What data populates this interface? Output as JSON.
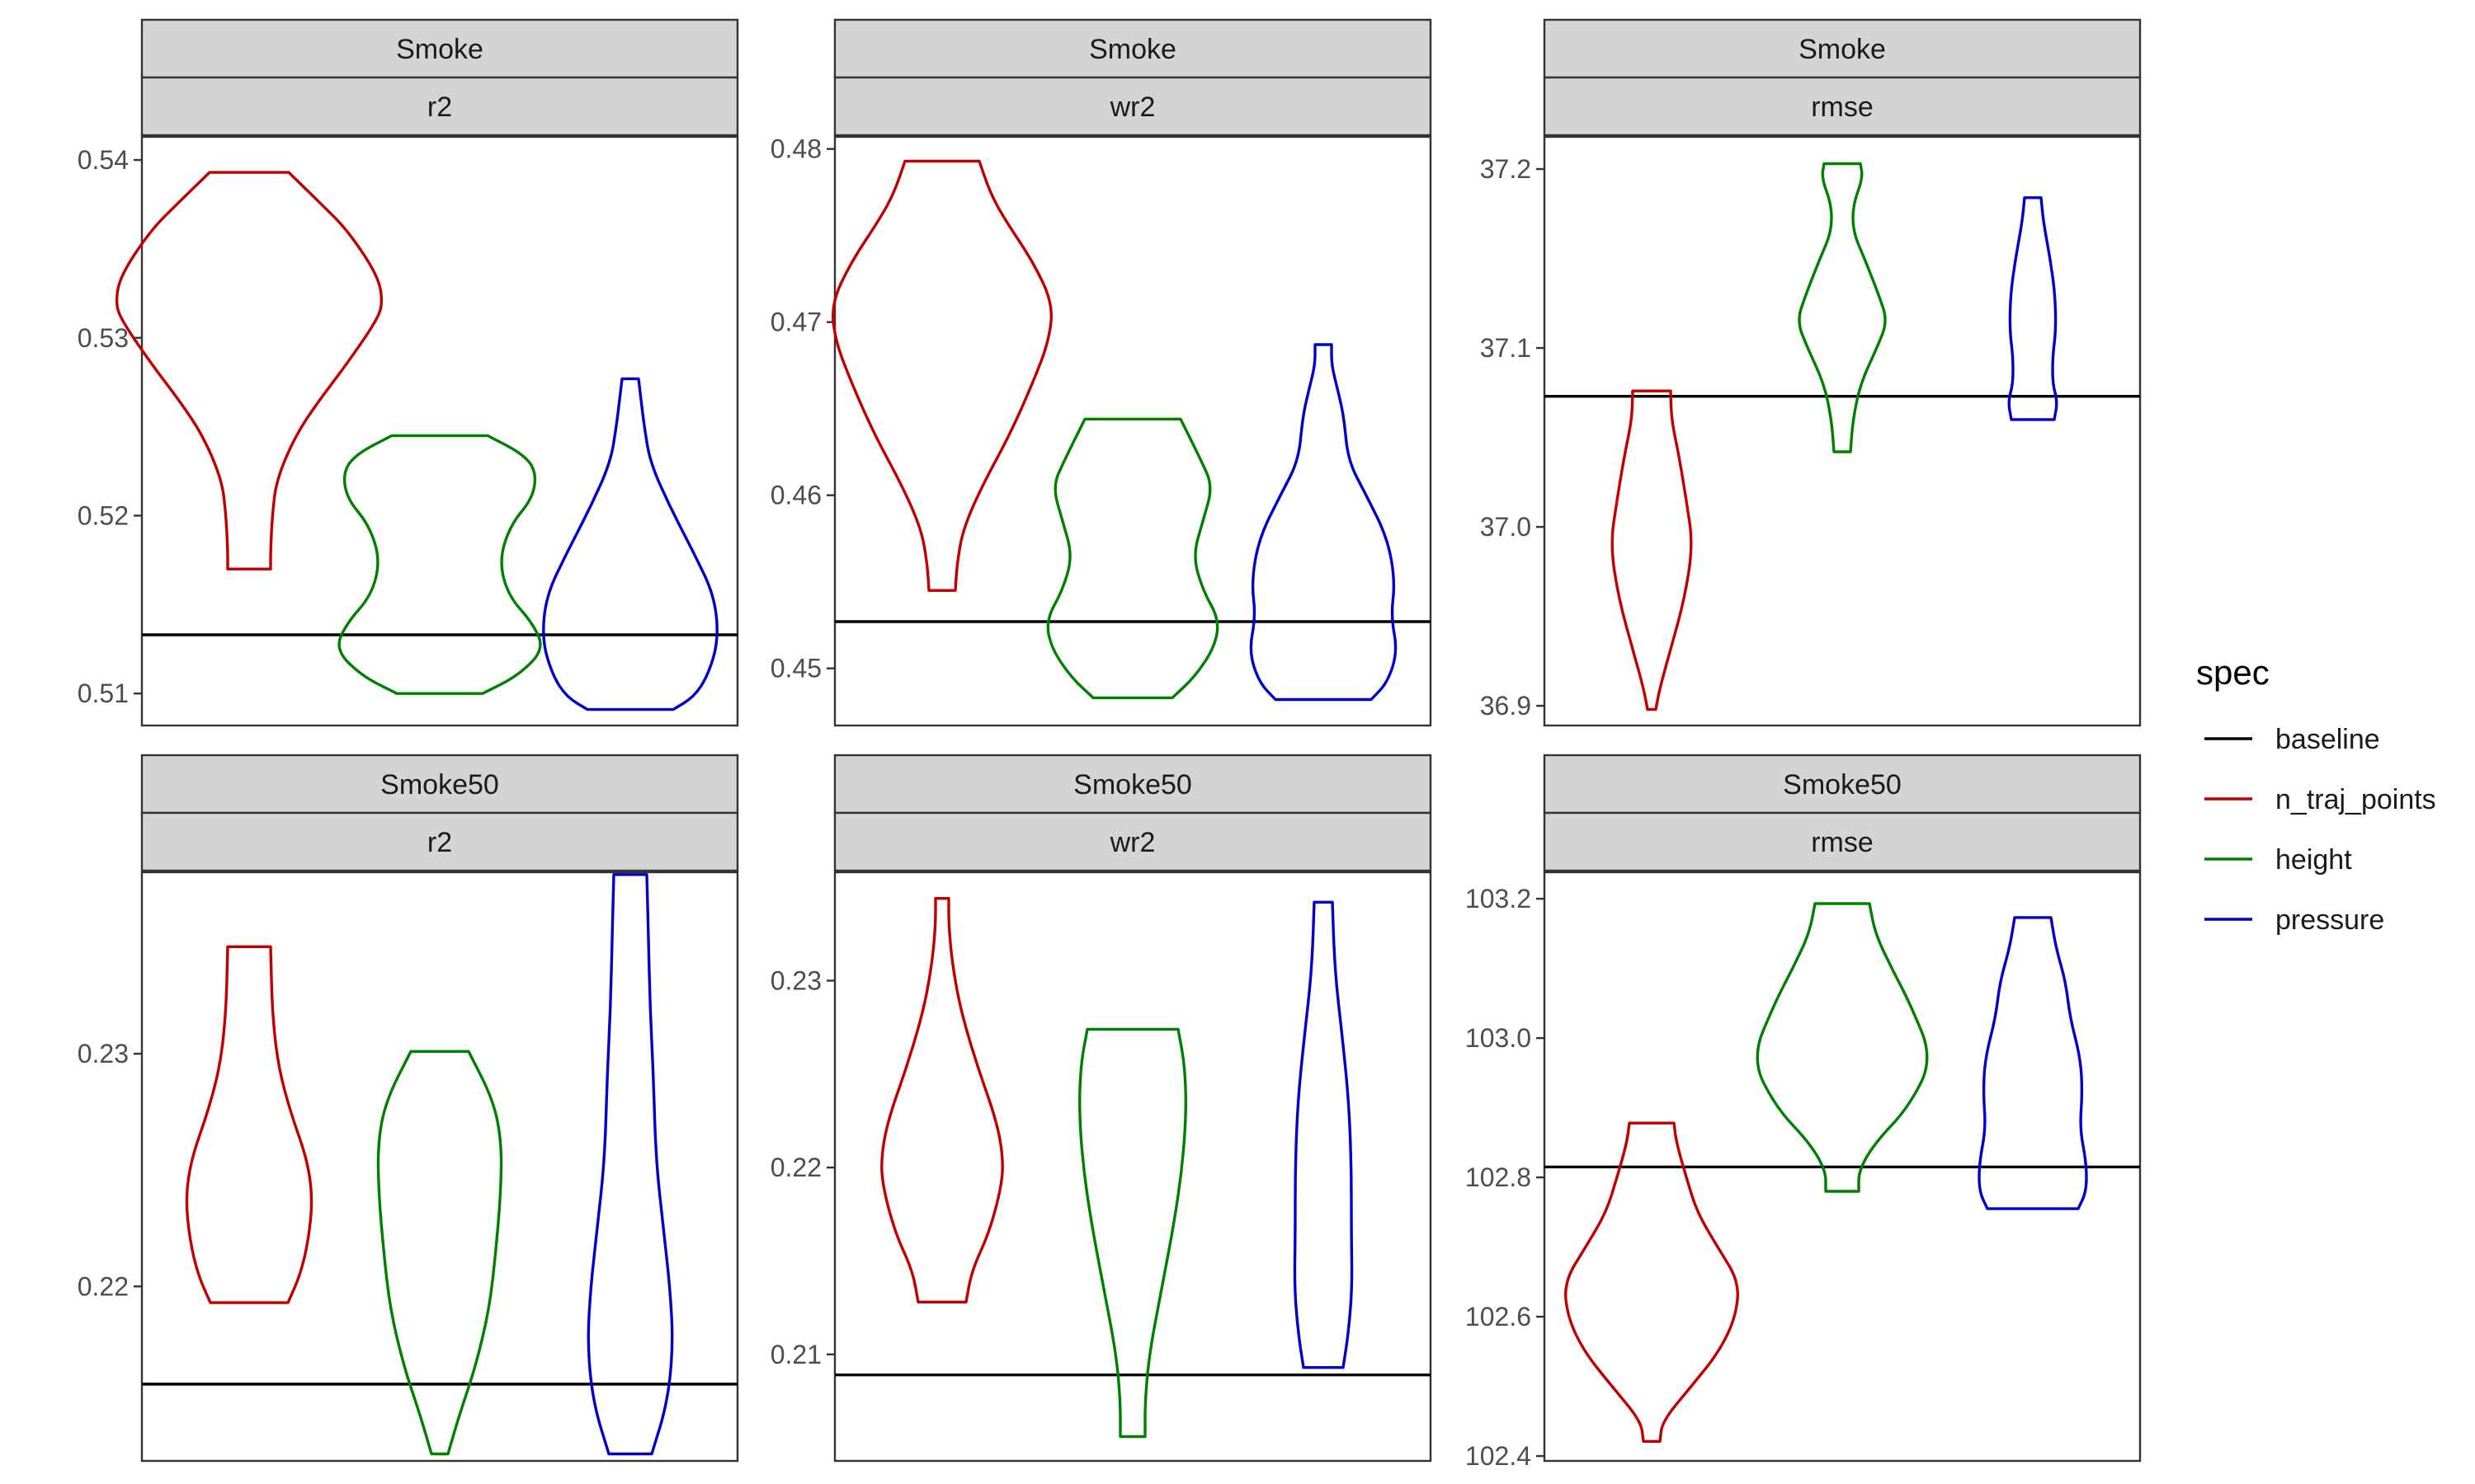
{
  "colors": {
    "baseline": "#000000",
    "n_traj_points": "#c00000",
    "height": "#008000",
    "pressure": "#0000c8",
    "strip": "#d4d4d4"
  },
  "legend": {
    "title": "spec",
    "position": "right",
    "items": [
      {
        "key": "baseline",
        "label": "baseline"
      },
      {
        "key": "n_traj_points",
        "label": "n_traj_points"
      },
      {
        "key": "height",
        "label": "height"
      },
      {
        "key": "pressure",
        "label": "pressure"
      }
    ]
  },
  "chart_data": [
    {
      "type": "violin",
      "dataset": "Smoke",
      "metric": "r2",
      "ylim": [
        0.5082,
        0.5413
      ],
      "yticks": [
        0.51,
        0.52,
        0.53,
        0.54
      ],
      "tick_labels": [
        "0.51",
        "0.52",
        "0.53",
        "0.54"
      ],
      "baseline": 0.5133,
      "violins": [
        {
          "spec": "n_traj_points",
          "ymin": 0.517,
          "ymax": 0.5393,
          "profile": [
            [
              0.517,
              0.026
            ],
            [
              0.518,
              0.026
            ],
            [
              0.52,
              0.028
            ],
            [
              0.522,
              0.033
            ],
            [
              0.5245,
              0.056
            ],
            [
              0.5265,
              0.085
            ],
            [
              0.5285,
              0.118
            ],
            [
              0.531,
              0.155
            ],
            [
              0.532,
              0.162
            ],
            [
              0.5335,
              0.156
            ],
            [
              0.536,
              0.12
            ],
            [
              0.5375,
              0.088
            ],
            [
              0.5393,
              0.048
            ]
          ]
        },
        {
          "spec": "height",
          "ymin": 0.51,
          "ymax": 0.5245,
          "profile": [
            [
              0.51,
              0.052
            ],
            [
              0.511,
              0.095
            ],
            [
              0.5125,
              0.127
            ],
            [
              0.514,
              0.112
            ],
            [
              0.5155,
              0.083
            ],
            [
              0.5175,
              0.072
            ],
            [
              0.5195,
              0.086
            ],
            [
              0.521,
              0.113
            ],
            [
              0.5225,
              0.117
            ],
            [
              0.5235,
              0.1
            ],
            [
              0.5245,
              0.058
            ]
          ]
        },
        {
          "spec": "pressure",
          "ymin": 0.5091,
          "ymax": 0.5277,
          "profile": [
            [
              0.5091,
              0.052
            ],
            [
              0.5098,
              0.077
            ],
            [
              0.511,
              0.094
            ],
            [
              0.513,
              0.107
            ],
            [
              0.5155,
              0.102
            ],
            [
              0.518,
              0.076
            ],
            [
              0.5205,
              0.048
            ],
            [
              0.523,
              0.024
            ],
            [
              0.525,
              0.017
            ],
            [
              0.5265,
              0.013
            ],
            [
              0.5277,
              0.01
            ]
          ]
        }
      ]
    },
    {
      "type": "violin",
      "dataset": "Smoke",
      "metric": "wr2",
      "ylim": [
        0.4467,
        0.4807
      ],
      "yticks": [
        0.45,
        0.46,
        0.47,
        0.48
      ],
      "tick_labels": [
        "0.45",
        "0.46",
        "0.47",
        "0.48"
      ],
      "baseline": 0.4527,
      "violins": [
        {
          "spec": "n_traj_points",
          "ymin": 0.4545,
          "ymax": 0.4793,
          "profile": [
            [
              0.4545,
              0.016
            ],
            [
              0.456,
              0.018
            ],
            [
              0.458,
              0.025
            ],
            [
              0.4605,
              0.048
            ],
            [
              0.4635,
              0.082
            ],
            [
              0.4665,
              0.11
            ],
            [
              0.469,
              0.13
            ],
            [
              0.4711,
              0.134
            ],
            [
              0.4735,
              0.11
            ],
            [
              0.476,
              0.075
            ],
            [
              0.4775,
              0.058
            ],
            [
              0.4793,
              0.045
            ]
          ]
        },
        {
          "spec": "height",
          "ymin": 0.4483,
          "ymax": 0.4644,
          "profile": [
            [
              0.4483,
              0.048
            ],
            [
              0.4495,
              0.075
            ],
            [
              0.4512,
              0.099
            ],
            [
              0.4528,
              0.105
            ],
            [
              0.4545,
              0.085
            ],
            [
              0.4565,
              0.073
            ],
            [
              0.4585,
              0.085
            ],
            [
              0.4605,
              0.097
            ],
            [
              0.462,
              0.083
            ],
            [
              0.4644,
              0.058
            ]
          ]
        },
        {
          "spec": "pressure",
          "ymin": 0.4482,
          "ymax": 0.4687,
          "profile": [
            [
              0.4482,
              0.058
            ],
            [
              0.4492,
              0.078
            ],
            [
              0.451,
              0.09
            ],
            [
              0.453,
              0.082
            ],
            [
              0.455,
              0.087
            ],
            [
              0.4575,
              0.078
            ],
            [
              0.46,
              0.052
            ],
            [
              0.462,
              0.03
            ],
            [
              0.4645,
              0.025
            ],
            [
              0.466,
              0.018
            ],
            [
              0.4675,
              0.01
            ],
            [
              0.4687,
              0.01
            ]
          ]
        }
      ]
    },
    {
      "type": "violin",
      "dataset": "Smoke",
      "metric": "rmse",
      "ylim": [
        36.889,
        37.218
      ],
      "yticks": [
        36.9,
        37.0,
        37.1,
        37.2
      ],
      "tick_labels": [
        "36.9",
        "37.0",
        "37.1",
        "37.2"
      ],
      "baseline": 37.073,
      "violins": [
        {
          "spec": "n_traj_points",
          "ymin": 36.898,
          "ymax": 37.076,
          "profile": [
            [
              36.898,
              0.005
            ],
            [
              36.91,
              0.01
            ],
            [
              36.93,
              0.022
            ],
            [
              36.96,
              0.04
            ],
            [
              36.99,
              0.05
            ],
            [
              37.015,
              0.042
            ],
            [
              37.04,
              0.033
            ],
            [
              37.06,
              0.024
            ],
            [
              37.076,
              0.023
            ]
          ]
        },
        {
          "spec": "height",
          "ymin": 37.042,
          "ymax": 37.203,
          "profile": [
            [
              37.042,
              0.01
            ],
            [
              37.06,
              0.013
            ],
            [
              37.08,
              0.022
            ],
            [
              37.1,
              0.042
            ],
            [
              37.115,
              0.055
            ],
            [
              37.13,
              0.044
            ],
            [
              37.15,
              0.027
            ],
            [
              37.165,
              0.013
            ],
            [
              37.18,
              0.013
            ],
            [
              37.195,
              0.025
            ],
            [
              37.203,
              0.022
            ]
          ]
        },
        {
          "spec": "pressure",
          "ymin": 37.06,
          "ymax": 37.184,
          "profile": [
            [
              37.06,
              0.026
            ],
            [
              37.07,
              0.03
            ],
            [
              37.08,
              0.024
            ],
            [
              37.095,
              0.024
            ],
            [
              37.11,
              0.028
            ],
            [
              37.13,
              0.027
            ],
            [
              37.15,
              0.021
            ],
            [
              37.17,
              0.013
            ],
            [
              37.184,
              0.01
            ]
          ]
        }
      ]
    },
    {
      "type": "violin",
      "dataset": "Smoke50",
      "metric": "r2",
      "ylim": [
        0.2125,
        0.2378
      ],
      "yticks": [
        0.22,
        0.23
      ],
      "tick_labels": [
        "0.22",
        "0.23"
      ],
      "baseline": 0.2158,
      "violins": [
        {
          "spec": "n_traj_points",
          "ymin": 0.2193,
          "ymax": 0.2346,
          "profile": [
            [
              0.2193,
              0.047
            ],
            [
              0.2205,
              0.062
            ],
            [
              0.222,
              0.072
            ],
            [
              0.2238,
              0.077
            ],
            [
              0.2255,
              0.07
            ],
            [
              0.2275,
              0.05
            ],
            [
              0.2295,
              0.035
            ],
            [
              0.2318,
              0.028
            ],
            [
              0.2346,
              0.026
            ]
          ]
        },
        {
          "spec": "height",
          "ymin": 0.2128,
          "ymax": 0.2301,
          "profile": [
            [
              0.2128,
              0.01
            ],
            [
              0.2145,
              0.024
            ],
            [
              0.2165,
              0.043
            ],
            [
              0.219,
              0.06
            ],
            [
              0.2215,
              0.068
            ],
            [
              0.224,
              0.074
            ],
            [
              0.2262,
              0.075
            ],
            [
              0.228,
              0.065
            ],
            [
              0.2301,
              0.035
            ]
          ]
        },
        {
          "spec": "pressure",
          "ymin": 0.2128,
          "ymax": 0.2377,
          "profile": [
            [
              0.2128,
              0.026
            ],
            [
              0.215,
              0.045
            ],
            [
              0.2175,
              0.052
            ],
            [
              0.22,
              0.048
            ],
            [
              0.2225,
              0.04
            ],
            [
              0.2255,
              0.031
            ],
            [
              0.229,
              0.028
            ],
            [
              0.232,
              0.024
            ],
            [
              0.235,
              0.022
            ],
            [
              0.2377,
              0.02
            ]
          ]
        }
      ]
    },
    {
      "type": "violin",
      "dataset": "Smoke50",
      "metric": "wr2",
      "ylim": [
        0.2043,
        0.2358
      ],
      "yticks": [
        0.21,
        0.22,
        0.23
      ],
      "tick_labels": [
        "0.21",
        "0.22",
        "0.23"
      ],
      "baseline": 0.2089,
      "violins": [
        {
          "spec": "n_traj_points",
          "ymin": 0.2128,
          "ymax": 0.2344,
          "profile": [
            [
              0.2128,
              0.029
            ],
            [
              0.2145,
              0.036
            ],
            [
              0.2165,
              0.057
            ],
            [
              0.219,
              0.072
            ],
            [
              0.2205,
              0.074
            ],
            [
              0.2225,
              0.066
            ],
            [
              0.2255,
              0.042
            ],
            [
              0.2285,
              0.022
            ],
            [
              0.231,
              0.012
            ],
            [
              0.233,
              0.008
            ],
            [
              0.2344,
              0.008
            ]
          ]
        },
        {
          "spec": "height",
          "ymin": 0.2056,
          "ymax": 0.2274,
          "profile": [
            [
              0.2056,
              0.015
            ],
            [
              0.2075,
              0.015
            ],
            [
              0.21,
              0.02
            ],
            [
              0.2135,
              0.035
            ],
            [
              0.217,
              0.05
            ],
            [
              0.22,
              0.06
            ],
            [
              0.223,
              0.065
            ],
            [
              0.2255,
              0.063
            ],
            [
              0.2274,
              0.055
            ]
          ]
        },
        {
          "spec": "pressure",
          "ymin": 0.2093,
          "ymax": 0.2342,
          "profile": [
            [
              0.2093,
              0.024
            ],
            [
              0.211,
              0.03
            ],
            [
              0.2135,
              0.035
            ],
            [
              0.2165,
              0.034
            ],
            [
              0.22,
              0.034
            ],
            [
              0.2235,
              0.031
            ],
            [
              0.227,
              0.023
            ],
            [
              0.2305,
              0.014
            ],
            [
              0.2342,
              0.011
            ]
          ]
        }
      ]
    },
    {
      "type": "violin",
      "dataset": "Smoke50",
      "metric": "rmse",
      "ylim": [
        102.393,
        103.238
      ],
      "yticks": [
        102.4,
        102.6,
        102.8,
        103.0,
        103.2
      ],
      "tick_labels": [
        "102.4",
        "102.6",
        "102.8",
        "103.0",
        "103.2"
      ],
      "baseline": 102.815,
      "violins": [
        {
          "spec": "n_traj_points",
          "ymin": 102.421,
          "ymax": 102.878,
          "profile": [
            [
              102.421,
              0.01
            ],
            [
              102.45,
              0.013
            ],
            [
              102.5,
              0.048
            ],
            [
              102.55,
              0.082
            ],
            [
              102.6,
              0.102
            ],
            [
              102.65,
              0.106
            ],
            [
              102.7,
              0.08
            ],
            [
              102.75,
              0.055
            ],
            [
              102.8,
              0.042
            ],
            [
              102.85,
              0.03
            ],
            [
              102.878,
              0.027
            ]
          ]
        },
        {
          "spec": "height",
          "ymin": 102.78,
          "ymax": 103.193,
          "profile": [
            [
              102.78,
              0.02
            ],
            [
              102.81,
              0.02
            ],
            [
              102.85,
              0.04
            ],
            [
              102.9,
              0.08
            ],
            [
              102.97,
              0.11
            ],
            [
              103.05,
              0.082
            ],
            [
              103.1,
              0.06
            ],
            [
              103.15,
              0.04
            ],
            [
              103.193,
              0.033
            ]
          ]
        },
        {
          "spec": "pressure",
          "ymin": 102.755,
          "ymax": 103.173,
          "profile": [
            [
              102.755,
              0.055
            ],
            [
              102.78,
              0.065
            ],
            [
              102.82,
              0.065
            ],
            [
              102.87,
              0.057
            ],
            [
              102.92,
              0.06
            ],
            [
              102.97,
              0.058
            ],
            [
              103.03,
              0.045
            ],
            [
              103.08,
              0.04
            ],
            [
              103.13,
              0.028
            ],
            [
              103.173,
              0.022
            ]
          ]
        }
      ]
    }
  ]
}
